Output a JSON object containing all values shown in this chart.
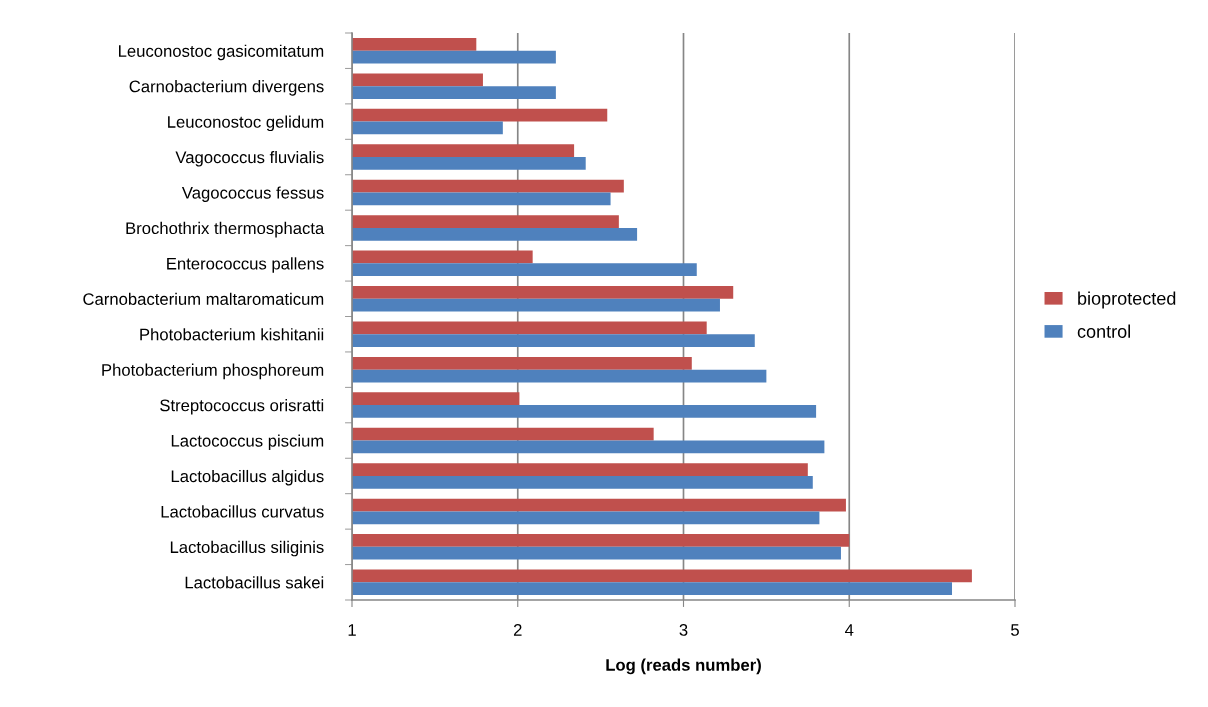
{
  "chart_data": {
    "type": "bar",
    "orientation": "horizontal",
    "xlabel": "Log (reads number)",
    "categories": [
      "Leuconostoc gasicomitatum",
      "Carnobacterium divergens",
      "Leuconostoc gelidum",
      "Vagococcus fluvialis",
      "Vagococcus fessus",
      "Brochothrix thermosphacta",
      "Enterococcus pallens",
      "Carnobacterium maltaromaticum",
      "Photobacterium kishitanii",
      "Photobacterium phosphoreum",
      "Streptococcus orisratti",
      "Lactococcus piscium",
      "Lactobacillus algidus",
      "Lactobacillus curvatus",
      "Lactobacillus siliginis",
      "Lactobacillus sakei"
    ],
    "series": [
      {
        "name": "bioprotected",
        "color": "#c0504d",
        "values": [
          1.75,
          1.79,
          2.54,
          2.34,
          2.64,
          2.61,
          2.09,
          3.3,
          3.14,
          3.05,
          2.01,
          2.82,
          3.75,
          3.98,
          4.0,
          4.74
        ]
      },
      {
        "name": "control",
        "color": "#4f81bd",
        "values": [
          2.23,
          2.23,
          1.91,
          2.41,
          2.56,
          2.72,
          3.08,
          3.22,
          3.43,
          3.5,
          3.8,
          3.85,
          3.78,
          3.82,
          3.95,
          4.62
        ]
      }
    ],
    "xlim": [
      1,
      5
    ],
    "xticks": [
      1,
      2,
      3,
      4,
      5
    ],
    "grid": "x",
    "legend": "right"
  }
}
